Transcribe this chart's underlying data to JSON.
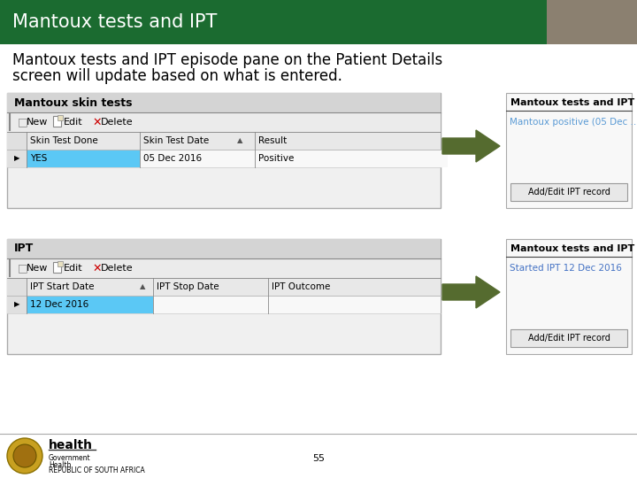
{
  "title": "Mantoux tests and IPT",
  "subtitle_line1": "Mantoux tests and IPT episode pane on the Patient Details",
  "subtitle_line2": "screen will update based on what is entered.",
  "header_bg": "#1b6b30",
  "header_text_color": "#ffffff",
  "body_bg": "#ffffff",
  "title_fontsize": 16,
  "subtitle_fontsize": 12,
  "panel1_title": "Mantoux skin tests",
  "panel1_cols": [
    "Skin Test Done",
    "Skin Test Date",
    "Result"
  ],
  "panel1_col_sort_idx": 1,
  "panel1_row": [
    "YES",
    "05 Dec 2016",
    "Positive"
  ],
  "panel1_row_color": "#5bc8f5",
  "panel2_title": "IPT",
  "panel2_cols": [
    "IPT Start Date",
    "IPT Stop Date",
    "IPT Outcome"
  ],
  "panel2_col_sort_idx": 0,
  "panel2_row": [
    "12 Dec 2016",
    "",
    ""
  ],
  "panel2_row_color": "#5bc8f5",
  "side_panel1_title": "Mantoux tests and IPT",
  "side_panel1_subtitle": "Mantoux positive (05 Dec ...",
  "side_panel1_subtitle_color": "#5b9bd5",
  "side_panel1_button": "Add/Edit IPT record",
  "side_panel2_title": "Mantoux tests and IPT",
  "side_panel2_subtitle": "Started IPT 12 Dec 2016",
  "side_panel2_subtitle_color": "#4472c4",
  "side_panel2_button": "Add/Edit IPT record",
  "arrow_color": "#556b2f",
  "footer_number": "55",
  "footer_text1": "health",
  "footer_subtext": "Government\nHealth\nREPUBLIC OF SOUTH AFRICA",
  "panel_bg": "#f0f0f0",
  "panel_border": "#aaaaaa",
  "title_bar_bg": "#d4d4d4",
  "toolbar_bg": "#ebebeb",
  "col_header_bg": "#e8e8e8",
  "sel_col_bg": "#e0e0e0"
}
